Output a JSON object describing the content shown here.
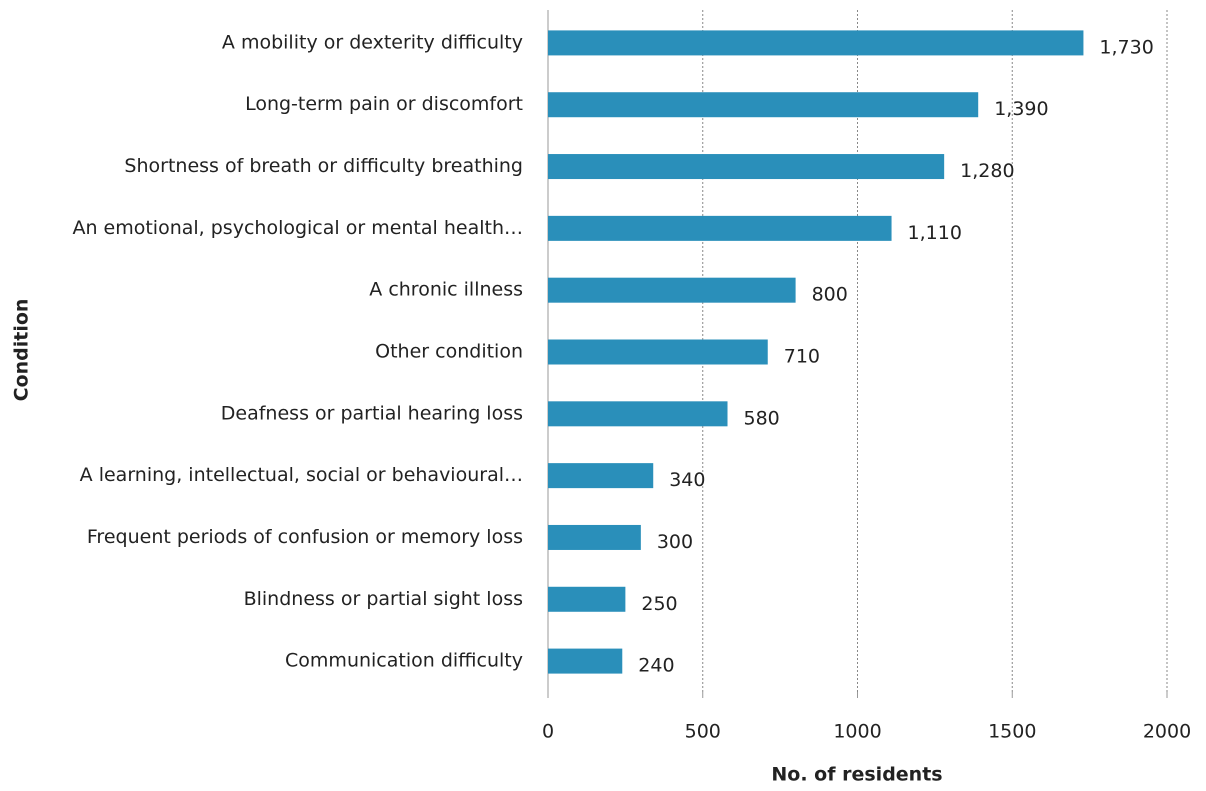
{
  "chart_data": {
    "type": "barh",
    "xlabel": "No. of residents",
    "ylabel": "Condition",
    "categories": [
      "A mobility or dexterity difficulty",
      "Long-term pain or discomfort",
      "Shortness of breath or difficulty breathing",
      "An emotional, psychological or mental health…",
      "A chronic illness",
      "Other condition",
      "Deafness or partial hearing loss",
      "A learning, intellectual, social or behavioural…",
      "Frequent periods of confusion or memory loss",
      "Blindness or partial sight loss",
      "Communication difficulty"
    ],
    "values": [
      1730,
      1390,
      1280,
      1110,
      800,
      710,
      580,
      340,
      300,
      250,
      240
    ],
    "value_labels": [
      "1,730",
      "1,390",
      "1,280",
      "1,110",
      "800",
      "710",
      "580",
      "340",
      "300",
      "250",
      "240"
    ],
    "color": "#2a8fba",
    "xlim": [
      0,
      2000
    ],
    "xticks": [
      0,
      500,
      1000,
      1500,
      2000
    ],
    "grid": true
  }
}
